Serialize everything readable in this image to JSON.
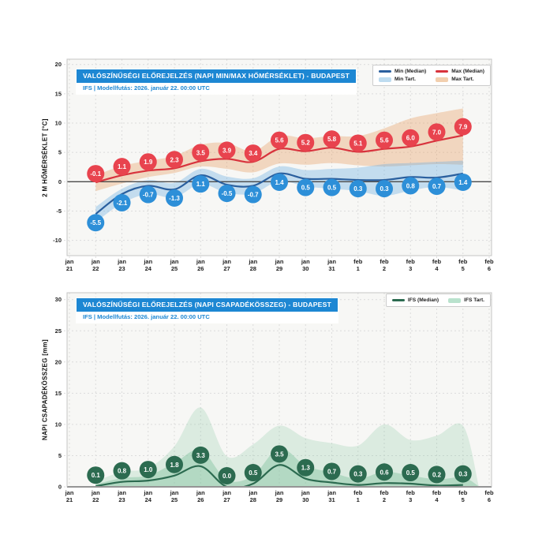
{
  "colors": {
    "title_bar": "#1d87d3",
    "subtitle_text": "#1d87d3",
    "plot_bg": "#f7f7f5",
    "grid": "#dcdcdc",
    "frame": "#c4c4c4",
    "zero_line": "#4a4a4a",
    "baseline": "#666666",
    "tick_text": "#222222"
  },
  "chart_data": [
    {
      "type": "line",
      "title": "VALÓSZÍNŰSÉGI ELŐREJELZÉS (NAPI MIN/MAX HŐMÉRSÉKLET) - BUDAPEST",
      "subtitle": "IFS | Modellfutás: 2026. január 22. 00:00 UTC",
      "ylabel": "2 M HŐMÉRSÉKLET [°C]",
      "ylim": [
        -12.6,
        20.9
      ],
      "yticks": [
        -10,
        -5,
        0,
        5,
        10,
        15,
        20
      ],
      "zero_line": true,
      "baseline": false,
      "x_domain": [
        0,
        16
      ],
      "x_tick_labels": [
        [
          "jan",
          "21"
        ],
        [
          "jan",
          "22"
        ],
        [
          "jan",
          "23"
        ],
        [
          "jan",
          "24"
        ],
        [
          "jan",
          "25"
        ],
        [
          "jan",
          "26"
        ],
        [
          "jan",
          "27"
        ],
        [
          "jan",
          "28"
        ],
        [
          "jan",
          "29"
        ],
        [
          "jan",
          "30"
        ],
        [
          "jan",
          "31"
        ],
        [
          "feb",
          "1"
        ],
        [
          "feb",
          "2"
        ],
        [
          "feb",
          "3"
        ],
        [
          "feb",
          "4"
        ],
        [
          "feb",
          "5"
        ],
        [
          "feb",
          "6"
        ]
      ],
      "legend": [
        {
          "label": "Min (Median)",
          "type": "line",
          "color": "#2a5f9e"
        },
        {
          "label": "Max (Median)",
          "type": "line",
          "color": "#d8333d"
        },
        {
          "label": "Min Tart.",
          "type": "band",
          "color": "#bedcf0"
        },
        {
          "label": "Max Tart.",
          "type": "band",
          "color": "#f2cfae"
        }
      ],
      "bands": [
        {
          "name": "Max Tart.",
          "color": "rgba(232,148,82,0.33)",
          "x": [
            1,
            2,
            3,
            4,
            5,
            6,
            7,
            8,
            9,
            10,
            11,
            12,
            13,
            14,
            15
          ],
          "low": [
            -1.6,
            -0.3,
            0.8,
            1.5,
            2.6,
            2.2,
            1.6,
            3.1,
            2.9,
            3.2,
            2.8,
            2.6,
            2.8,
            3.0,
            2.9
          ],
          "high": [
            1.1,
            2.7,
            3.6,
            4.4,
            6.3,
            6.6,
            5.2,
            7.8,
            7.4,
            7.8,
            7.8,
            9.1,
            10.8,
            11.7,
            12.5
          ]
        },
        {
          "name": "Min Tart.",
          "color": "rgba(110,175,225,0.38)",
          "x": [
            1,
            2,
            3,
            4,
            5,
            6,
            7,
            8,
            9,
            10,
            11,
            12,
            13,
            14,
            15
          ],
          "low": [
            -6.9,
            -3.7,
            -2.1,
            -2.7,
            -0.4,
            -1.9,
            -2.0,
            0.1,
            -0.8,
            -1.2,
            -1.6,
            -2.4,
            -1.5,
            -0.9,
            -1.5
          ],
          "high": [
            -4.3,
            -1.2,
            0.3,
            -0.2,
            2.2,
            0.9,
            0.6,
            2.6,
            2.0,
            2.2,
            2.4,
            3.0,
            3.2,
            3.4,
            3.6
          ]
        }
      ],
      "series": [
        {
          "name": "Max (Median)",
          "line_color": "#d8333d",
          "marker_color": "#e8434e",
          "label_offset": -11,
          "x": [
            1,
            2,
            3,
            4,
            5,
            6,
            7,
            8,
            9,
            10,
            11,
            12,
            13,
            14,
            15
          ],
          "values": [
            -0.1,
            1.1,
            1.9,
            2.3,
            3.5,
            3.9,
            3.4,
            5.6,
            5.2,
            5.8,
            5.1,
            5.6,
            6.0,
            7.0,
            7.9
          ]
        },
        {
          "name": "Min (Median)",
          "line_color": "#2a5f9e",
          "marker_color": "#2d8fd8",
          "label_offset": 11,
          "x": [
            1,
            2,
            3,
            4,
            5,
            6,
            7,
            8,
            9,
            10,
            11,
            12,
            13,
            14,
            15
          ],
          "values": [
            -5.5,
            -2.1,
            -0.7,
            -1.3,
            1.1,
            -0.5,
            -0.7,
            1.4,
            0.5,
            0.5,
            0.3,
            0.3,
            0.8,
            0.7,
            1.4
          ]
        }
      ]
    },
    {
      "type": "line",
      "title": "VALÓSZÍNŰSÉGI ELŐREJELZÉS (NAPI CSAPADÉKÖSSZEG) - BUDAPEST",
      "subtitle": "IFS | Modellfutás: 2026. január 22. 00:00 UTC",
      "ylabel": "NAPI CSAPADÉKÖSSZEG [mm]",
      "ylim": [
        0,
        31.1
      ],
      "yticks": [
        0,
        5,
        10,
        15,
        20,
        25,
        30
      ],
      "zero_line": false,
      "baseline": true,
      "x_domain": [
        0,
        16
      ],
      "x_tick_labels": [
        [
          "jan",
          "21"
        ],
        [
          "jan",
          "22"
        ],
        [
          "jan",
          "23"
        ],
        [
          "jan",
          "24"
        ],
        [
          "jan",
          "25"
        ],
        [
          "jan",
          "26"
        ],
        [
          "jan",
          "27"
        ],
        [
          "jan",
          "28"
        ],
        [
          "jan",
          "29"
        ],
        [
          "jan",
          "30"
        ],
        [
          "jan",
          "31"
        ],
        [
          "feb",
          "1"
        ],
        [
          "feb",
          "2"
        ],
        [
          "feb",
          "3"
        ],
        [
          "feb",
          "4"
        ],
        [
          "feb",
          "5"
        ],
        [
          "feb",
          "6"
        ]
      ],
      "legend": [
        {
          "label": "IFS (Median)",
          "type": "line",
          "color": "#2c6b50"
        },
        {
          "label": "IFS Tart.",
          "type": "band",
          "color": "#b9e2cd"
        }
      ],
      "bands": [
        {
          "name": "IFS Tart. (outer)",
          "color": "rgba(130,195,160,0.24)",
          "x": [
            1,
            2,
            3,
            4,
            5,
            6,
            7,
            8,
            9,
            10,
            11,
            12,
            13,
            14,
            15,
            15.6
          ],
          "low": [
            0,
            0,
            0,
            0,
            0,
            0,
            0,
            0,
            0,
            0,
            0,
            0,
            0,
            0,
            0,
            0
          ],
          "high": [
            0.9,
            2.4,
            3.0,
            6.5,
            12.7,
            4.9,
            6.8,
            9.8,
            7.8,
            7.0,
            6.6,
            10.0,
            7.5,
            8.2,
            9.8,
            0.2
          ]
        },
        {
          "name": "IFS Tart. (inner)",
          "color": "rgba(130,195,160,0.45)",
          "x": [
            1,
            2,
            3,
            4,
            5,
            6,
            7,
            8,
            9,
            10,
            11,
            12,
            13,
            14,
            15,
            15.6
          ],
          "low": [
            0,
            0,
            0,
            0,
            0,
            0,
            0,
            0,
            0,
            0,
            0,
            0,
            0,
            0,
            0,
            0
          ],
          "high": [
            0.4,
            1.4,
            1.8,
            3.8,
            5.9,
            1.1,
            1.8,
            6.2,
            3.4,
            2.3,
            1.3,
            2.4,
            1.8,
            1.2,
            1.5,
            0.1
          ]
        }
      ],
      "series": [
        {
          "name": "IFS (Median)",
          "line_color": "#2c6b50",
          "marker_color": "#2c6b50",
          "label_offset": -14,
          "x": [
            1,
            2,
            3,
            4,
            5,
            6,
            7,
            8,
            9,
            10,
            11,
            12,
            13,
            14,
            15
          ],
          "values": [
            0.1,
            0.8,
            1.0,
            1.8,
            3.3,
            0.0,
            0.5,
            3.5,
            1.3,
            0.7,
            0.3,
            0.6,
            0.5,
            0.2,
            0.3
          ]
        }
      ]
    }
  ]
}
